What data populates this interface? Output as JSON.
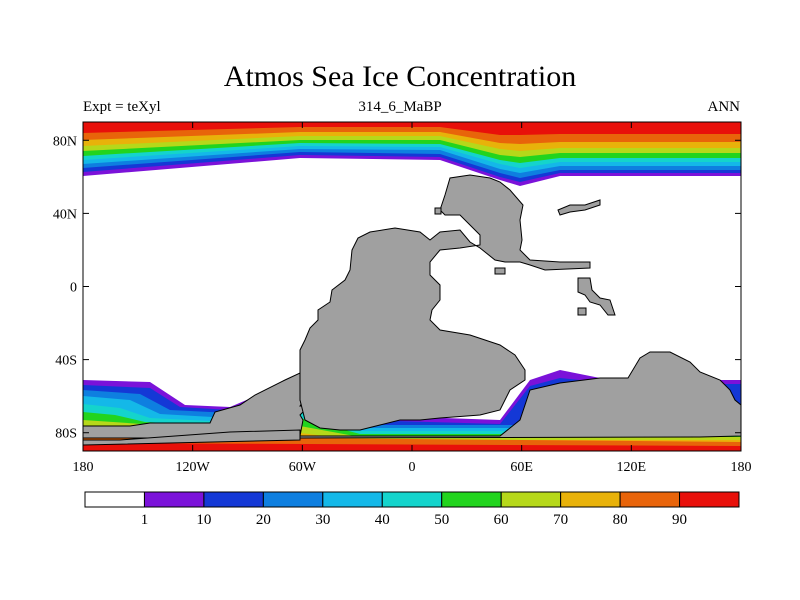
{
  "title": "Atmos Sea Ice Concentration",
  "subtitle_left": "Expt = teXyl",
  "subtitle_center": "314_6_MaBP",
  "subtitle_right": "ANN",
  "lat_labels": [
    "80N",
    "40N",
    "0",
    "40S",
    "80S"
  ],
  "lon_labels": [
    "180",
    "120W",
    "60W",
    "0",
    "60E",
    "120E",
    "180"
  ],
  "colorbar_labels": [
    "1",
    "10",
    "20",
    "30",
    "40",
    "50",
    "60",
    "70",
    "80",
    "90"
  ],
  "colorbar_colors": [
    "#ffffff",
    "#7b12d9",
    "#1438d6",
    "#0e7fe0",
    "#14b8e8",
    "#14d4cc",
    "#22d41e",
    "#b6d81a",
    "#e8b20a",
    "#e8640a",
    "#e8100a"
  ],
  "land_color": "#a0a0a0"
}
